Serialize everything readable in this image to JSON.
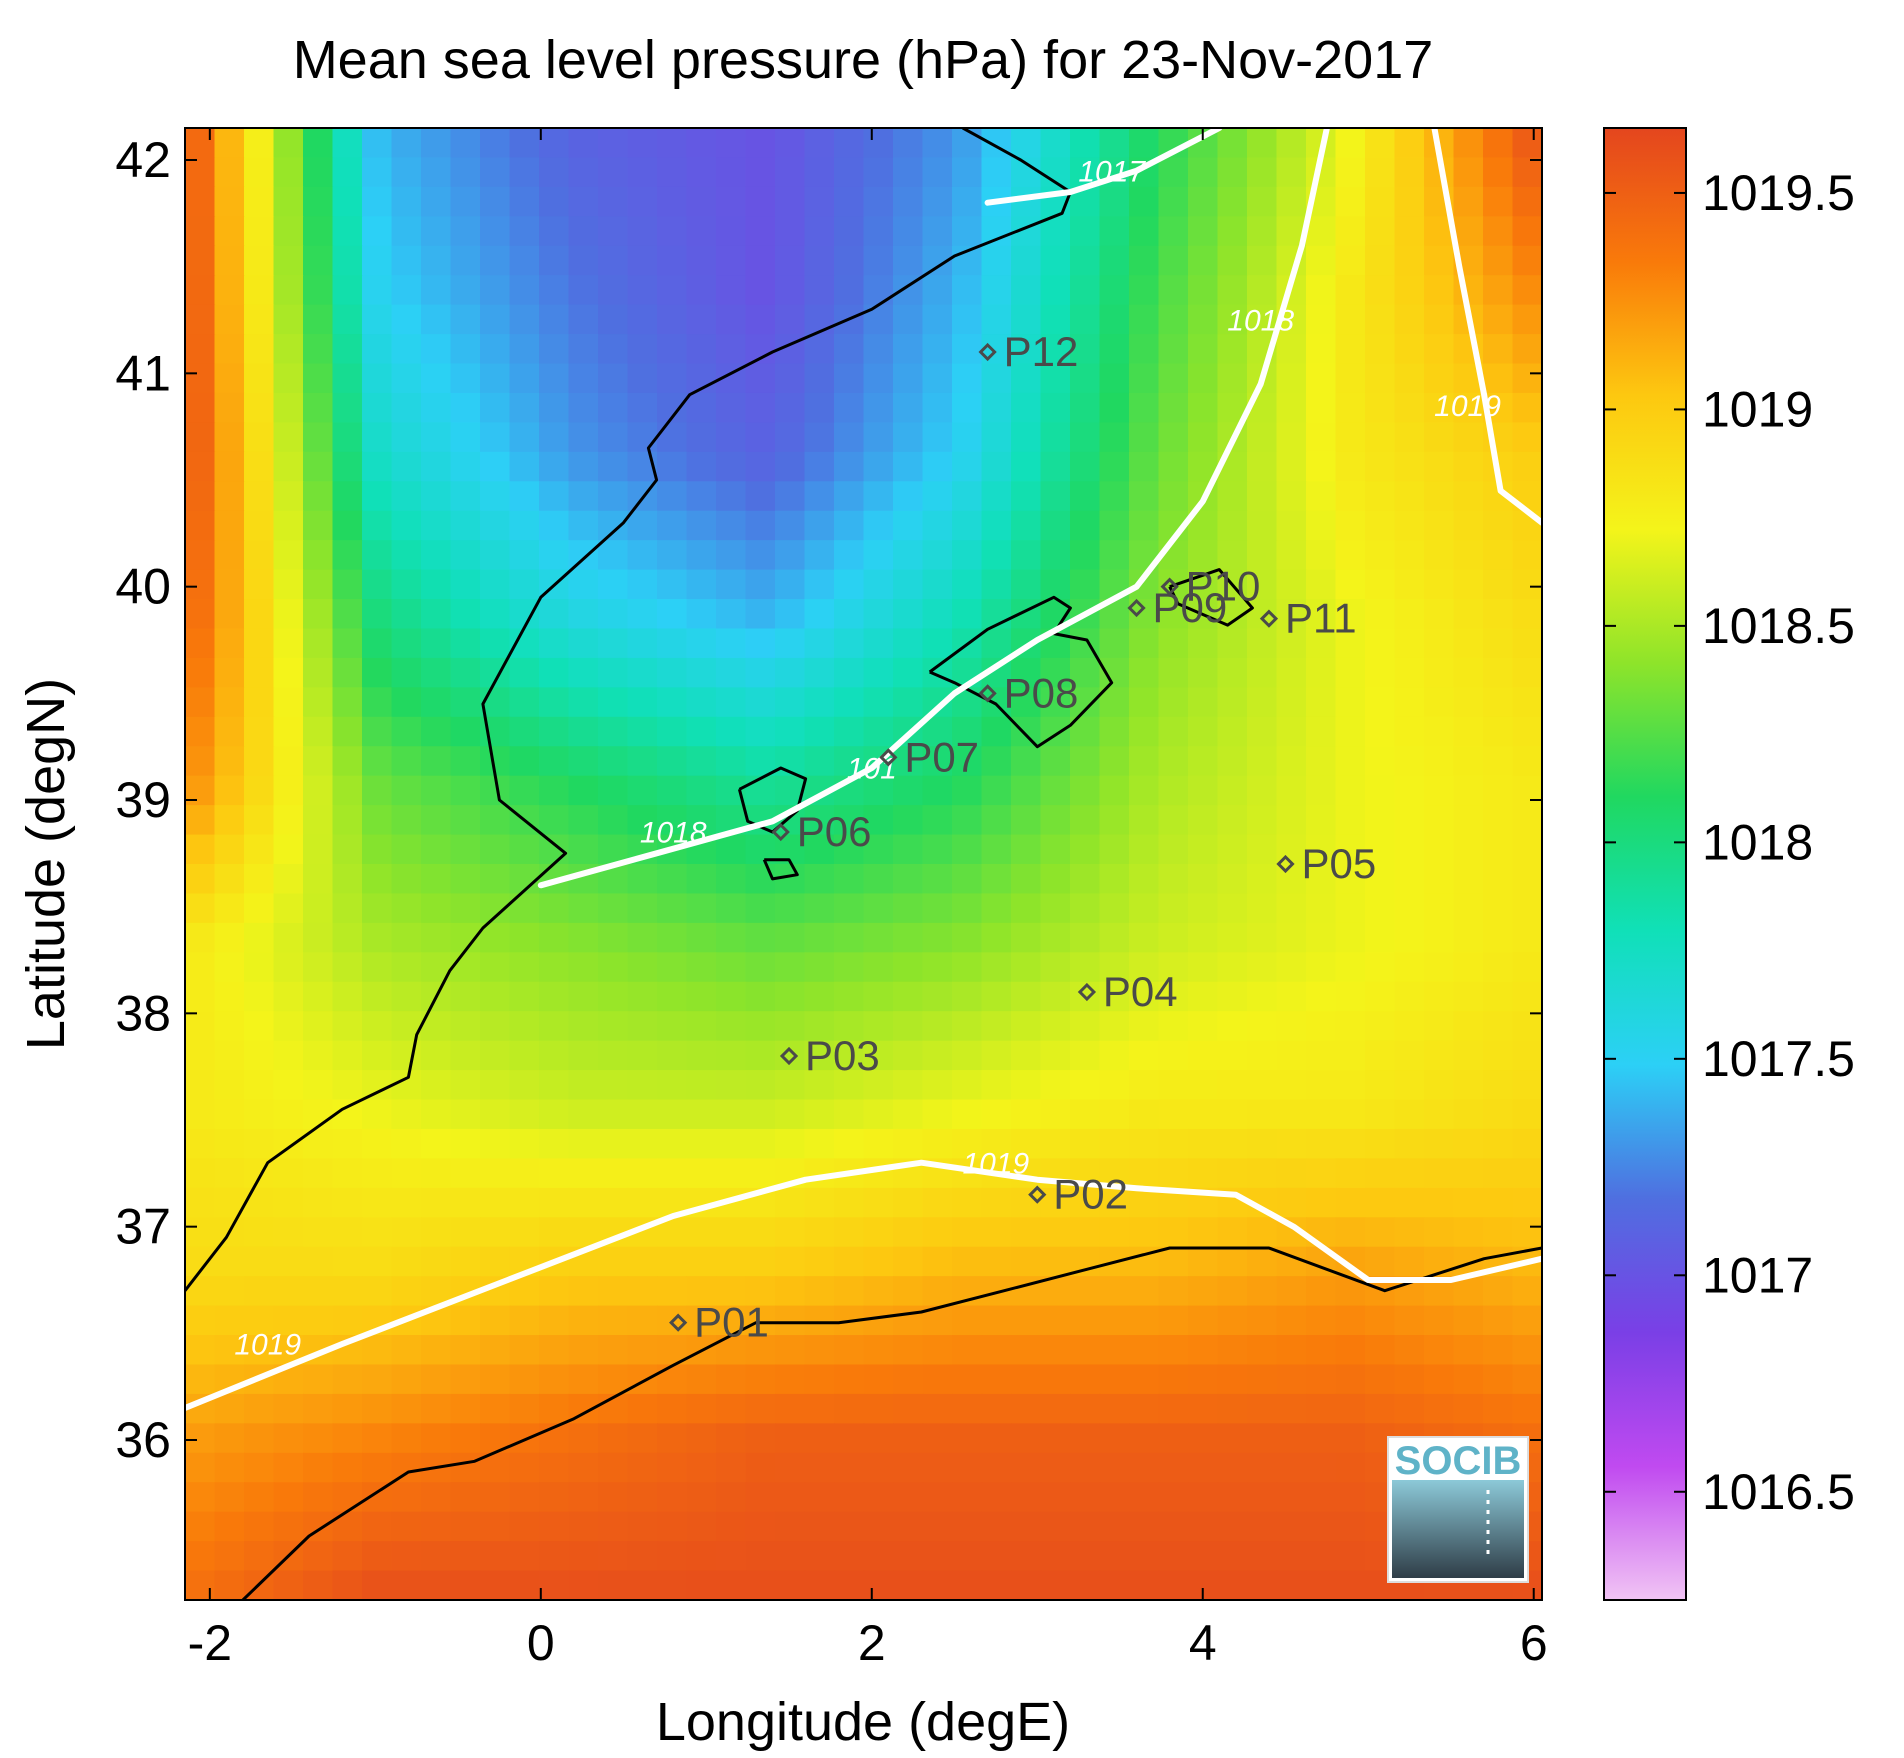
{
  "chart_data": {
    "type": "heatmap",
    "title": "Mean sea level pressure (hPa) for 23-Nov-2017",
    "xlabel": "Longitude (degE)",
    "ylabel": "Latitude (degN)",
    "xlim": [
      -2.15,
      6.05
    ],
    "ylim": [
      35.25,
      42.15
    ],
    "x_ticks": [
      -2,
      0,
      2,
      4,
      6
    ],
    "y_ticks": [
      36,
      37,
      38,
      39,
      40,
      41,
      42
    ],
    "x_tick_labels": [
      "-2",
      "0",
      "2",
      "4",
      "6"
    ],
    "y_tick_labels": [
      "36",
      "37",
      "38",
      "39",
      "40",
      "41",
      "42"
    ],
    "colorbar": {
      "min": 1016.25,
      "max": 1019.65,
      "ticks": [
        1016.5,
        1017,
        1017.5,
        1018,
        1018.5,
        1019,
        1019.5
      ],
      "tick_labels": [
        "1016.5",
        "1017",
        "1017.5",
        "1018",
        "1018.5",
        "1019",
        "1019.5"
      ],
      "colormap": [
        "#f1c4f4",
        "#c04af0",
        "#7a3fe6",
        "#4f6fe0",
        "#2cd0f6",
        "#10e0b8",
        "#20d860",
        "#8ee42a",
        "#f4f41a",
        "#fdc810",
        "#f97a0a",
        "#e4461e"
      ]
    },
    "pressure_field": [
      [
        1019.6,
        1017.4,
        1017.1,
        1017.0,
        1017.3,
        1018.1,
        1018.7,
        1019.6
      ],
      [
        1019.6,
        1017.5,
        1017.2,
        1017.0,
        1017.4,
        1018.2,
        1018.8,
        1019.3
      ],
      [
        1019.6,
        1017.7,
        1017.3,
        1017.1,
        1017.5,
        1018.3,
        1018.8,
        1019.0
      ],
      [
        1019.5,
        1018.0,
        1017.6,
        1017.4,
        1017.8,
        1018.4,
        1018.7,
        1018.9
      ],
      [
        1019.3,
        1018.3,
        1018.1,
        1017.9,
        1018.1,
        1018.5,
        1018.7,
        1018.8
      ],
      [
        1018.8,
        1018.5,
        1018.4,
        1018.3,
        1018.4,
        1018.6,
        1018.7,
        1018.8
      ],
      [
        1018.8,
        1018.7,
        1018.6,
        1018.6,
        1018.7,
        1018.8,
        1018.8,
        1018.9
      ],
      [
        1018.9,
        1018.9,
        1019.0,
        1019.0,
        1019.1,
        1019.1,
        1019.2,
        1019.1
      ],
      [
        1019.2,
        1019.3,
        1019.4,
        1019.5,
        1019.5,
        1019.5,
        1019.5,
        1019.4
      ],
      [
        1019.4,
        1019.6,
        1019.6,
        1019.6,
        1019.6,
        1019.6,
        1019.6,
        1019.6
      ]
    ],
    "contours": [
      {
        "level": 1017,
        "label": "1017",
        "points": [
          [
            2.7,
            41.8
          ],
          [
            3.2,
            41.85
          ],
          [
            3.6,
            41.95
          ],
          [
            4.1,
            42.15
          ]
        ]
      },
      {
        "level": 1018,
        "label": "1018",
        "points": [
          [
            0.0,
            38.6
          ],
          [
            0.7,
            38.75
          ],
          [
            1.4,
            38.9
          ],
          [
            2.0,
            39.15
          ],
          [
            2.5,
            39.5
          ],
          [
            3.0,
            39.75
          ],
          [
            3.6,
            40.0
          ],
          [
            4.0,
            40.4
          ],
          [
            4.35,
            40.95
          ],
          [
            4.6,
            41.6
          ],
          [
            4.75,
            42.15
          ]
        ]
      },
      {
        "level": 1019,
        "label": "1019",
        "points": [
          [
            -2.15,
            36.15
          ],
          [
            -1.2,
            36.45
          ],
          [
            -0.2,
            36.75
          ],
          [
            0.8,
            37.05
          ],
          [
            1.6,
            37.22
          ],
          [
            2.3,
            37.3
          ],
          [
            3.0,
            37.22
          ],
          [
            3.6,
            37.18
          ],
          [
            4.2,
            37.15
          ],
          [
            4.55,
            37.0
          ],
          [
            5.0,
            36.75
          ],
          [
            5.5,
            36.75
          ],
          [
            6.05,
            36.85
          ]
        ]
      },
      {
        "level": 1019,
        "label": "1019",
        "points": [
          [
            5.4,
            42.15
          ],
          [
            5.55,
            41.5
          ],
          [
            5.7,
            40.9
          ],
          [
            5.8,
            40.45
          ],
          [
            6.05,
            40.3
          ]
        ]
      }
    ],
    "contour_labels": [
      {
        "text": "1017",
        "lon": 3.45,
        "lat": 41.9
      },
      {
        "text": "1018",
        "lon": 4.35,
        "lat": 41.2
      },
      {
        "text": "1018",
        "lon": 0.8,
        "lat": 38.8
      },
      {
        "text": "101",
        "lon": 2.0,
        "lat": 39.1
      },
      {
        "text": "1019",
        "lon": 2.75,
        "lat": 37.25
      },
      {
        "text": "1019",
        "lon": -1.65,
        "lat": 36.4
      },
      {
        "text": "1019",
        "lon": 5.6,
        "lat": 40.8
      }
    ],
    "stations": [
      {
        "name": "P01",
        "lon": 0.83,
        "lat": 36.55
      },
      {
        "name": "P02",
        "lon": 3.0,
        "lat": 37.15
      },
      {
        "name": "P03",
        "lon": 1.5,
        "lat": 37.8
      },
      {
        "name": "P04",
        "lon": 3.3,
        "lat": 38.1
      },
      {
        "name": "P05",
        "lon": 4.5,
        "lat": 38.7
      },
      {
        "name": "P06",
        "lon": 1.45,
        "lat": 38.85
      },
      {
        "name": "P07",
        "lon": 2.1,
        "lat": 39.2
      },
      {
        "name": "P08",
        "lon": 2.7,
        "lat": 39.5
      },
      {
        "name": "P09",
        "lon": 3.6,
        "lat": 39.9
      },
      {
        "name": "P10",
        "lon": 3.8,
        "lat": 40.0
      },
      {
        "name": "P11",
        "lon": 4.4,
        "lat": 39.85
      },
      {
        "name": "P12",
        "lon": 2.7,
        "lat": 41.1
      }
    ],
    "coastlines": [
      {
        "name": "iberia-east",
        "points": [
          [
            2.55,
            42.15
          ],
          [
            2.9,
            42.0
          ],
          [
            3.2,
            41.85
          ],
          [
            3.15,
            41.75
          ],
          [
            2.5,
            41.55
          ],
          [
            2.0,
            41.3
          ],
          [
            1.4,
            41.1
          ],
          [
            0.9,
            40.9
          ],
          [
            0.65,
            40.65
          ],
          [
            0.7,
            40.5
          ],
          [
            0.5,
            40.3
          ],
          [
            0.0,
            39.95
          ],
          [
            -0.35,
            39.45
          ],
          [
            -0.25,
            39.0
          ],
          [
            0.15,
            38.75
          ],
          [
            -0.35,
            38.4
          ],
          [
            -0.55,
            38.2
          ],
          [
            -0.75,
            37.9
          ],
          [
            -0.8,
            37.7
          ],
          [
            -1.2,
            37.55
          ],
          [
            -1.65,
            37.3
          ],
          [
            -1.9,
            36.95
          ],
          [
            -2.15,
            36.7
          ]
        ]
      },
      {
        "name": "africa-north",
        "points": [
          [
            6.05,
            36.9
          ],
          [
            5.7,
            36.85
          ],
          [
            5.1,
            36.7
          ],
          [
            4.4,
            36.9
          ],
          [
            3.8,
            36.9
          ],
          [
            3.3,
            36.8
          ],
          [
            2.8,
            36.7
          ],
          [
            2.3,
            36.6
          ],
          [
            1.8,
            36.55
          ],
          [
            1.3,
            36.55
          ],
          [
            0.8,
            36.35
          ],
          [
            0.2,
            36.1
          ],
          [
            -0.4,
            35.9
          ],
          [
            -0.8,
            35.85
          ],
          [
            -1.4,
            35.55
          ],
          [
            -1.8,
            35.25
          ]
        ]
      },
      {
        "name": "ibiza",
        "points": [
          [
            1.2,
            39.05
          ],
          [
            1.45,
            39.15
          ],
          [
            1.6,
            39.1
          ],
          [
            1.55,
            38.95
          ],
          [
            1.4,
            38.85
          ],
          [
            1.25,
            38.9
          ],
          [
            1.2,
            39.05
          ]
        ]
      },
      {
        "name": "formentera",
        "points": [
          [
            1.35,
            38.72
          ],
          [
            1.5,
            38.72
          ],
          [
            1.55,
            38.65
          ],
          [
            1.4,
            38.63
          ],
          [
            1.35,
            38.72
          ]
        ]
      },
      {
        "name": "mallorca",
        "points": [
          [
            2.35,
            39.6
          ],
          [
            2.7,
            39.8
          ],
          [
            3.1,
            39.95
          ],
          [
            3.2,
            39.9
          ],
          [
            3.1,
            39.78
          ],
          [
            3.3,
            39.75
          ],
          [
            3.45,
            39.55
          ],
          [
            3.2,
            39.35
          ],
          [
            3.0,
            39.25
          ],
          [
            2.75,
            39.45
          ],
          [
            2.5,
            39.55
          ],
          [
            2.35,
            39.6
          ]
        ]
      },
      {
        "name": "menorca",
        "points": [
          [
            3.8,
            40.0
          ],
          [
            4.1,
            40.08
          ],
          [
            4.3,
            39.9
          ],
          [
            4.15,
            39.82
          ],
          [
            3.85,
            39.92
          ],
          [
            3.8,
            40.0
          ]
        ]
      }
    ],
    "logo_text": "SOCIB"
  },
  "colors": {
    "station_marker": "#4a4a4a",
    "station_label": "#4a4a4a",
    "contour": "#ffffff",
    "coastline": "#000000",
    "axis": "#000000",
    "logo_text": "#5fb3c8"
  }
}
